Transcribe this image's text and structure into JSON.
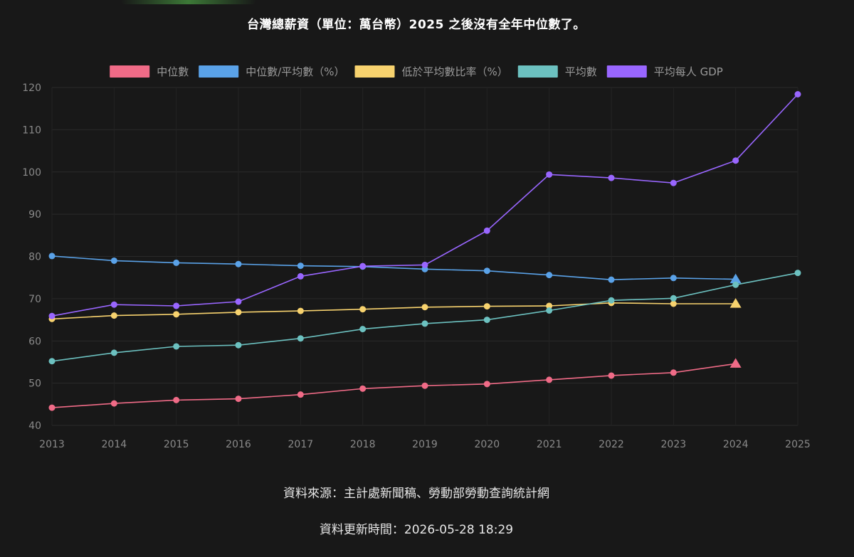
{
  "chart_data": {
    "type": "line",
    "title": "台灣總薪資（單位：萬台幣）2025 之後沒有全年中位數了。",
    "x": [
      "2013",
      "2014",
      "2015",
      "2016",
      "2017",
      "2018",
      "2019",
      "2020",
      "2021",
      "2022",
      "2023",
      "2024",
      "2025"
    ],
    "ylim": [
      40,
      120
    ],
    "yticks": [
      40,
      50,
      60,
      70,
      80,
      90,
      100,
      110,
      120
    ],
    "grid": true,
    "legend_position": "top",
    "series": [
      {
        "name": "中位數",
        "color": "#f06b87",
        "values": [
          44.2,
          45.2,
          46.0,
          46.3,
          47.3,
          48.7,
          49.4,
          49.8,
          50.8,
          51.8,
          52.5,
          54.6,
          null
        ],
        "last_marker": "triangle"
      },
      {
        "name": "中位數/平均數（%）",
        "color": "#5aa2e8",
        "values": [
          80.1,
          79.0,
          78.5,
          78.2,
          77.8,
          77.6,
          77.0,
          76.6,
          75.6,
          74.5,
          74.9,
          74.6,
          null
        ],
        "last_marker": "triangle"
      },
      {
        "name": "低於平均數比率（%）",
        "color": "#f7d26e",
        "values": [
          65.2,
          66.0,
          66.3,
          66.8,
          67.1,
          67.5,
          68.0,
          68.2,
          68.3,
          69.0,
          68.8,
          68.8,
          null
        ],
        "last_marker": "triangle"
      },
      {
        "name": "平均數",
        "color": "#6cc1c0",
        "values": [
          55.2,
          57.2,
          58.7,
          59.0,
          60.6,
          62.8,
          64.1,
          65.0,
          67.2,
          69.6,
          70.1,
          73.3,
          76.1
        ],
        "last_marker": "circle"
      },
      {
        "name": "平均每人 GDP",
        "color": "#9966ff",
        "values": [
          65.9,
          68.6,
          68.3,
          69.3,
          75.3,
          77.7,
          78.0,
          86.1,
          99.4,
          98.6,
          97.4,
          102.7,
          118.4
        ],
        "last_marker": "circle"
      }
    ]
  },
  "footer": {
    "source": "資料來源：主計處新聞稿、勞動部勞動查詢統計網",
    "updated": "資料更新時間：2026-05-28 18:29"
  }
}
